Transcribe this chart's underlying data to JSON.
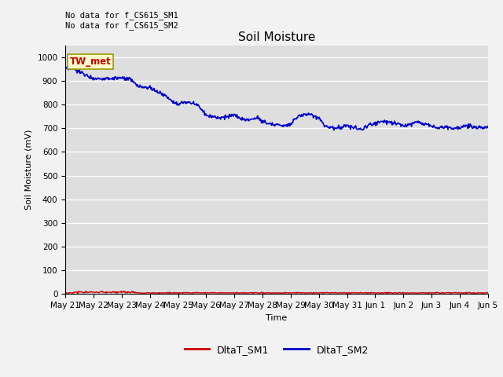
{
  "title": "Soil Moisture",
  "ylabel": "Soil Moisture (mV)",
  "xlabel": "Time",
  "ylim": [
    0,
    1050
  ],
  "yticks": [
    0,
    100,
    200,
    300,
    400,
    500,
    600,
    700,
    800,
    900,
    1000
  ],
  "annotation_text": "No data for f_CS615_SM1\nNo data for f_CS615_SM2",
  "legend_label_TW_met": "TW_met",
  "legend_label_SM1": "DltaT_SM1",
  "legend_label_SM2": "DltaT_SM2",
  "color_SM1": "#cc0000",
  "color_SM2": "#0000cc",
  "color_TW_met_text": "#cc0000",
  "color_TW_met_bg": "#ffffcc",
  "color_TW_met_border": "#999900",
  "bg_color": "#dedede",
  "fig_bg_color": "#f2f2f2",
  "x_labels": [
    "May 21",
    "May 22",
    "May 23",
    "May 24",
    "May 25",
    "May 26",
    "May 27",
    "May 28",
    "May 29",
    "May 30",
    "May 31",
    "Jun 1",
    "Jun 2",
    "Jun 3",
    "Jun 4",
    "Jun 5"
  ]
}
